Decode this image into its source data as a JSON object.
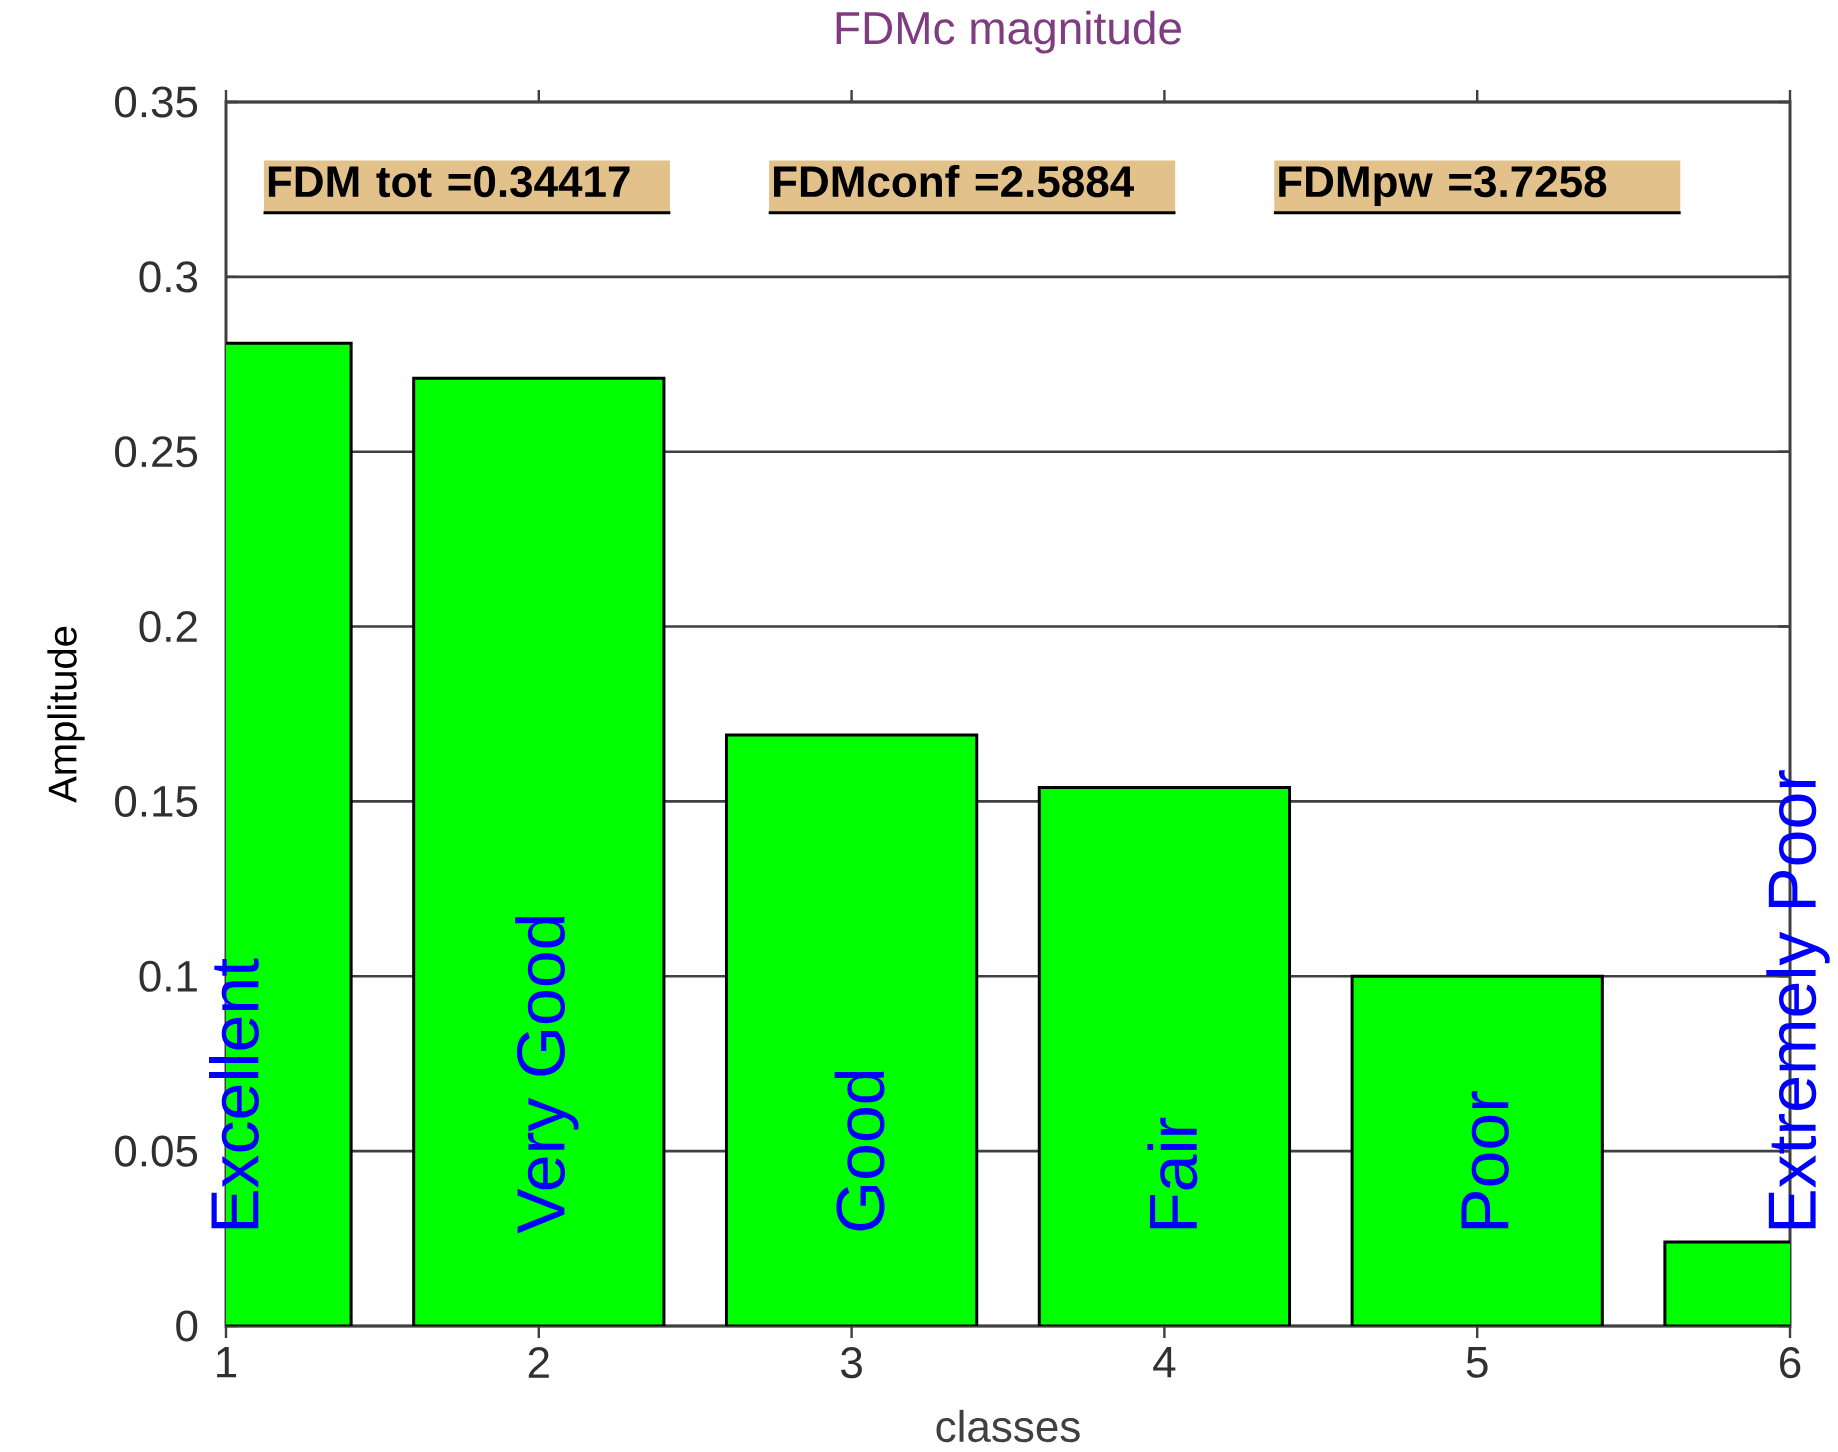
{
  "chart_data": {
    "type": "bar",
    "title": "FDMc magnitude",
    "xlabel": "classes",
    "ylabel": "Amplitude",
    "x": [
      1,
      2,
      3,
      4,
      5,
      6
    ],
    "values": [
      0.281,
      0.271,
      0.169,
      0.154,
      0.1,
      0.024
    ],
    "color": "#00ff00",
    "xlim": [
      1,
      6
    ],
    "ylim": [
      0,
      0.35
    ],
    "xticks": [
      1,
      2,
      3,
      4,
      5,
      6
    ],
    "yticks": [
      0,
      0.05,
      0.1,
      0.15,
      0.2,
      0.25,
      0.3,
      0.35
    ],
    "grid": "y",
    "annotations": [
      "Excellent",
      "Very Good",
      "Good",
      "Fair",
      "Poor",
      "Extremely Poor",
      "FDM tot =0.34417",
      "FDMconf =2.5884",
      "FDMpw =3.7258"
    ]
  }
}
